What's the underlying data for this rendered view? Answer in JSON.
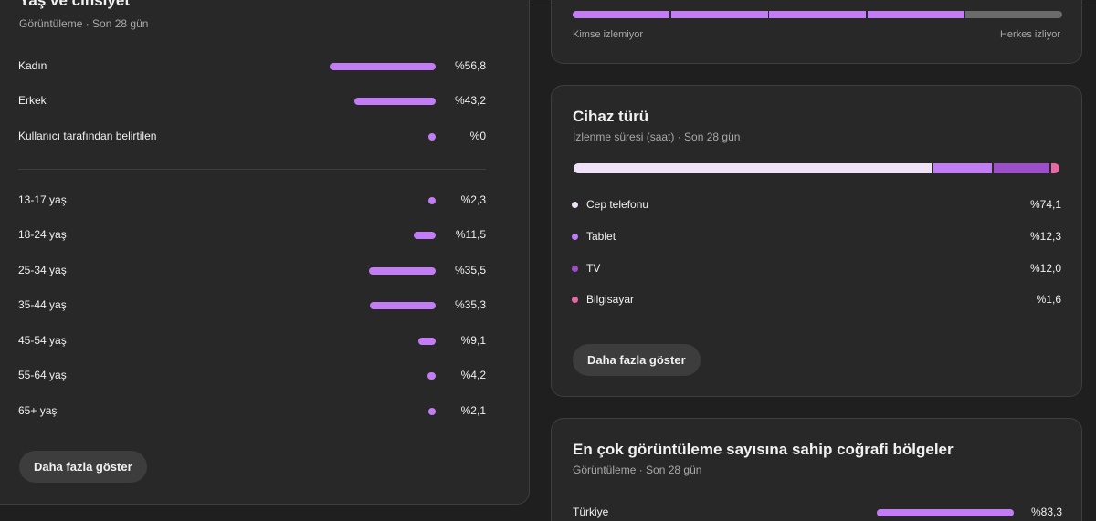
{
  "age_gender": {
    "title": "Yaş ve cinsiyet",
    "subtitle": "Görüntüleme · Son 28 gün",
    "gender": [
      {
        "label": "Kadın",
        "value": "%56,8",
        "share": 56.8
      },
      {
        "label": "Erkek",
        "value": "%43,2",
        "share": 43.2
      },
      {
        "label": "Kullanıcı tarafından belirtilen",
        "value": "%0",
        "share": 0
      }
    ],
    "ages": [
      {
        "label": "13-17 yaş",
        "value": "%2,3",
        "share": 2.3
      },
      {
        "label": "18-24 yaş",
        "value": "%11,5",
        "share": 11.5
      },
      {
        "label": "25-34 yaş",
        "value": "%35,5",
        "share": 35.5
      },
      {
        "label": "35-44 yaş",
        "value": "%35,3",
        "share": 35.3
      },
      {
        "label": "45-54 yaş",
        "value": "%9,1",
        "share": 9.1
      },
      {
        "label": "55-64 yaş",
        "value": "%4,2",
        "share": 4.2
      },
      {
        "label": "65+ yaş",
        "value": "%2,1",
        "share": 2.1
      }
    ],
    "more_button": "Daha fazla göster"
  },
  "retention": {
    "left_label": "Kimse izlemiyor",
    "right_label": "Herkes izliyor"
  },
  "device": {
    "title": "Cihaz türü",
    "subtitle": "İzlenme süresi (saat) · Son 28 gün",
    "items": [
      {
        "label": "Cep telefonu",
        "value": "%74,1",
        "share": 74.1,
        "color": "#efe2f7"
      },
      {
        "label": "Tablet",
        "value": "%12,3",
        "share": 12.3,
        "color": "#c27cf4"
      },
      {
        "label": "TV",
        "value": "%12,0",
        "share": 12.0,
        "color": "#9c4fc9"
      },
      {
        "label": "Bilgisayar",
        "value": "%1,6",
        "share": 1.6,
        "color": "#e56aa4"
      }
    ],
    "more_button": "Daha fazla göster"
  },
  "geo": {
    "title": "En çok görüntüleme sayısına sahip coğrafi bölgeler",
    "subtitle": "Görüntüleme · Son 28 gün",
    "items": [
      {
        "label": "Türkiye",
        "value": "%83,3",
        "share": 83.3
      }
    ]
  },
  "colors": {
    "accent": "#c27cf4",
    "segment_gray": "#6b6b6b"
  }
}
